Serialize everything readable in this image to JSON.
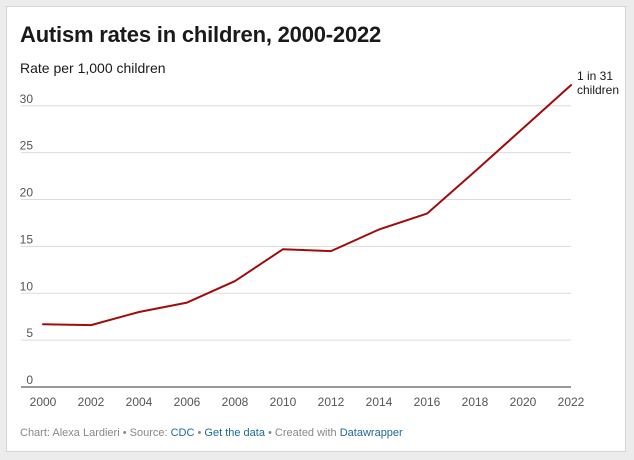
{
  "chart_data": {
    "type": "line",
    "title": "Autism rates in children, 2000-2022",
    "subtitle": "Rate per 1,000 children",
    "xlabel": "",
    "ylabel": "",
    "x": [
      2000,
      2002,
      2004,
      2006,
      2008,
      2010,
      2012,
      2014,
      2016,
      2018,
      2020,
      2022
    ],
    "xticks": [
      "2000",
      "2002",
      "2004",
      "2006",
      "2008",
      "2010",
      "2012",
      "2014",
      "2016",
      "2018",
      "2020",
      "2022"
    ],
    "yticks": [
      "0",
      "5",
      "10",
      "15",
      "20",
      "25",
      "30"
    ],
    "xlim": [
      2000,
      2022
    ],
    "ylim": [
      0,
      32
    ],
    "grid": true,
    "series": [
      {
        "x": [
          2000,
          2002,
          2004,
          2006,
          2008,
          2010,
          2012,
          2014,
          2016,
          2018,
          2020,
          2022
        ],
        "values": [
          6.7,
          6.6,
          8.0,
          9.0,
          11.3,
          14.7,
          14.5,
          16.8,
          18.5,
          23.0,
          27.6,
          32.2
        ],
        "color": "#a00c0c"
      }
    ],
    "annotations": [
      {
        "x": 2022,
        "y": 32.2,
        "lines": [
          "1 in 31",
          "children"
        ]
      }
    ]
  },
  "footer": {
    "prefix": "Chart: Alexa Lardieri • Source: ",
    "source_link": "CDC",
    "separator": " • ",
    "data_link": "Get the data",
    "created": " • Created with ",
    "tool_link": "Datawrapper"
  },
  "colors": {
    "line": "#a00c0c",
    "grid": "#dcdcdc",
    "axis": "#333333",
    "tick_text": "#555555",
    "link": "#1d6a96"
  }
}
